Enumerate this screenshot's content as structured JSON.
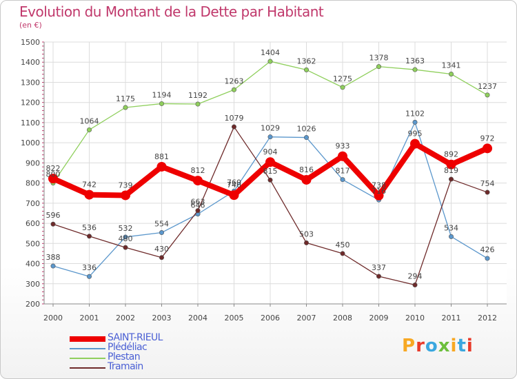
{
  "title": "Evolution du Montant de la Dette par Habitant",
  "unit_label": "(en €)",
  "logo_text": "Proxiti",
  "chart_data": {
    "type": "line",
    "title": "Evolution du Montant de la Dette par Habitant",
    "xlabel": "",
    "ylabel": "(en €)",
    "ylim": [
      200,
      1500
    ],
    "y_ticks": [
      200,
      300,
      400,
      500,
      600,
      700,
      800,
      900,
      1000,
      1100,
      1200,
      1300,
      1400,
      1500
    ],
    "x": [
      "2000",
      "2001",
      "2002",
      "2003",
      "2004",
      "2005",
      "2006",
      "2007",
      "2008",
      "2009",
      "2010",
      "2011",
      "2012"
    ],
    "grid": true,
    "legend_position": "bottom-left",
    "series": [
      {
        "name": "SAINT-RIEUL",
        "color": "#ee0000",
        "values": [
          822,
          742,
          739,
          881,
          812,
          740,
          904,
          816,
          933,
          738,
          995,
          892,
          972
        ]
      },
      {
        "name": "Plédéliac",
        "color": "#5b97cc",
        "values": [
          388,
          336,
          532,
          554,
          646,
          760,
          1029,
          1026,
          817,
          716,
          1102,
          534,
          426
        ]
      },
      {
        "name": "Plestan",
        "color": "#8fcf5c",
        "values": [
          800,
          1064,
          1175,
          1194,
          1192,
          1263,
          1404,
          1362,
          1275,
          1378,
          1363,
          1341,
          1237
        ]
      },
      {
        "name": "Tramain",
        "color": "#6e2a2a",
        "values": [
          596,
          536,
          480,
          430,
          663,
          1079,
          815,
          503,
          450,
          337,
          294,
          819,
          754
        ]
      }
    ]
  }
}
